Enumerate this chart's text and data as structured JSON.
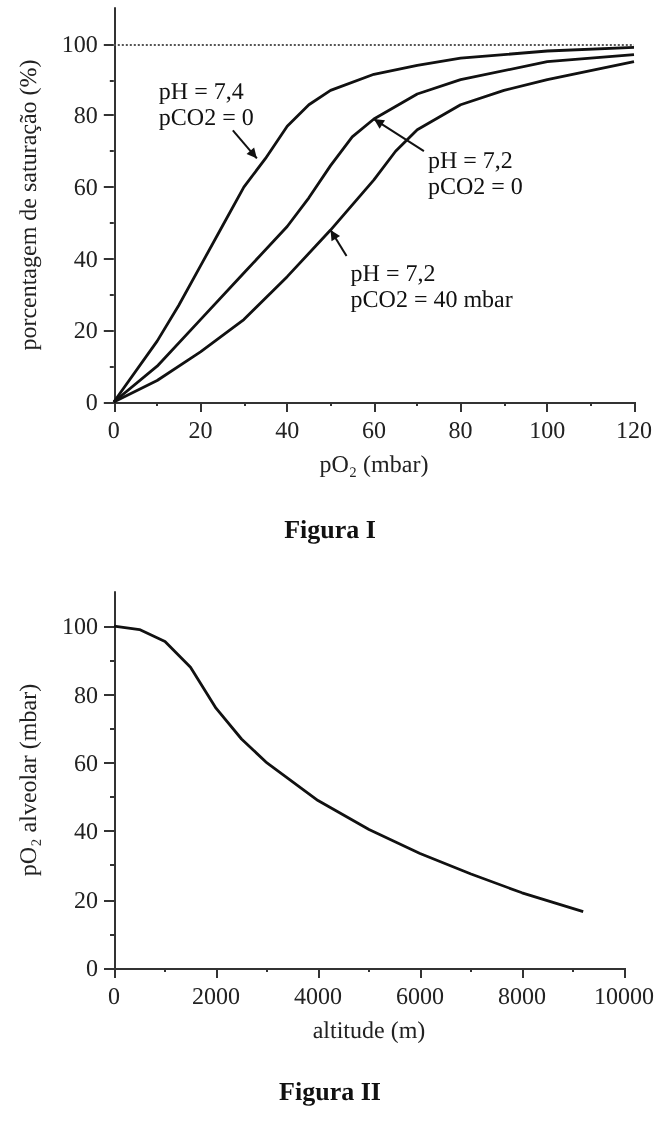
{
  "chart_data": [
    {
      "type": "line",
      "title": "Figura I",
      "xlabel": "pO₂ (mbar)",
      "ylabel": "porcentagem de saturação (%)",
      "series": [
        {
          "color": "#111111",
          "x": [
            0,
            10,
            15,
            20,
            25,
            30,
            35,
            40,
            45,
            50,
            60,
            70,
            80,
            100,
            120
          ],
          "values": [
            0,
            17,
            27,
            38,
            49,
            60,
            68,
            77,
            83,
            87,
            91.5,
            94,
            96,
            98,
            99
          ]
        },
        {
          "color": "#111111",
          "x": [
            0,
            10,
            20,
            30,
            40,
            45,
            50,
            55,
            60,
            70,
            80,
            100,
            120
          ],
          "values": [
            0,
            10,
            23,
            36,
            49,
            57,
            66,
            74,
            79,
            86,
            90,
            95,
            97
          ]
        },
        {
          "color": "#111111",
          "x": [
            0,
            10,
            20,
            30,
            40,
            50,
            60,
            65,
            70,
            80,
            90,
            100,
            120
          ],
          "values": [
            0,
            6,
            14,
            23,
            35,
            48,
            62,
            70,
            76,
            83,
            87,
            90,
            95
          ]
        }
      ],
      "xlim": [
        0,
        120
      ],
      "xticks": [
        0,
        20,
        40,
        60,
        80,
        100,
        120
      ],
      "ylim": [
        0,
        110
      ],
      "yticks": [
        0,
        20,
        40,
        60,
        80,
        100
      ],
      "ref_lines": [
        {
          "axis": "y",
          "value": 100,
          "line_style": "dotted",
          "color": "#555555"
        }
      ],
      "annotations": [
        {
          "text": "pH = 7,4\npCO2 = 0",
          "x": 33,
          "y": 68
        },
        {
          "text": "pH = 7,2\npCO2 = 0",
          "x": 60,
          "y": 79
        },
        {
          "text": "pH = 7,2\npCO2 = 40 mbar",
          "x": 50,
          "y": 48
        }
      ],
      "marker": "none",
      "line_style": "solid",
      "grid": false
    },
    {
      "type": "line",
      "title": "Figura II",
      "xlabel": "altitude (m)",
      "ylabel": "pO₂ alveolar (mbar)",
      "series": [
        {
          "color": "#111111",
          "x": [
            0,
            500,
            1000,
            1500,
            2000,
            2500,
            3000,
            4000,
            5000,
            6000,
            7000,
            8000,
            9200
          ],
          "values": [
            100,
            99,
            95.5,
            88,
            76,
            67,
            60,
            49,
            40.5,
            33.5,
            27.5,
            22,
            16.5
          ]
        }
      ],
      "xlim": [
        0,
        10000
      ],
      "xticks": [
        0,
        2000,
        4000,
        6000,
        8000,
        10000
      ],
      "ylim": [
        0,
        110
      ],
      "yticks": [
        0,
        20,
        40,
        60,
        80,
        100
      ],
      "marker": "none",
      "line_style": "solid",
      "grid": false
    }
  ]
}
